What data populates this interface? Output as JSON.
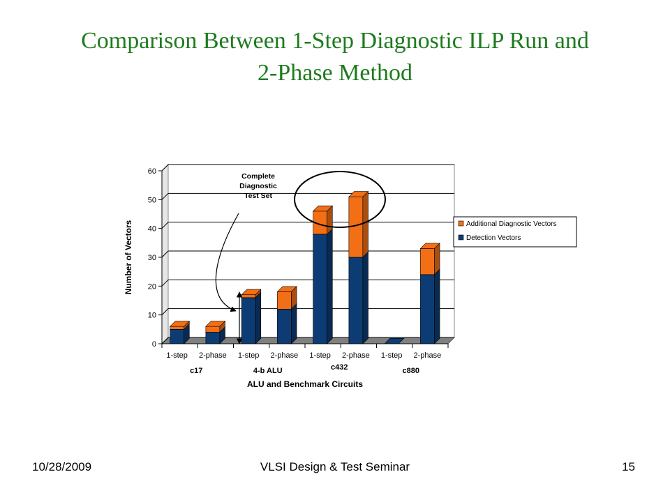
{
  "slide": {
    "title_line1": "Comparison Between 1-Step Diagnostic ILP Run and",
    "title_line2": "2-Phase Method",
    "footer_date": "10/28/2009",
    "footer_center": "VLSI Design & Test Seminar",
    "page_number": "15"
  },
  "chart_data": {
    "type": "bar",
    "stacked": true,
    "three_d": true,
    "title": "",
    "xlabel": "ALU and Benchmark Circuits",
    "ylabel": "Number of Vectors",
    "ylim": [
      0,
      60
    ],
    "yticks": [
      0,
      10,
      20,
      30,
      40,
      50,
      60
    ],
    "grid": true,
    "legend_position": "right",
    "categories": [
      "1-step",
      "2-phase",
      "1-step",
      "2-phase",
      "1-step",
      "2-phase",
      "1-step",
      "2-phase"
    ],
    "groups": [
      {
        "label": "c17",
        "categories": [
          0,
          1
        ]
      },
      {
        "label": "4-b ALU",
        "categories": [
          2,
          3
        ]
      },
      {
        "label": "c432",
        "categories": [
          4,
          5
        ]
      },
      {
        "label": "c880",
        "categories": [
          6,
          7
        ]
      }
    ],
    "series": [
      {
        "name": "Detection Vectors",
        "color": "#0d3c74",
        "values": [
          5,
          4,
          16,
          12,
          38,
          30,
          0,
          24
        ]
      },
      {
        "name": "Additional Diagnostic Vectors",
        "color": "#f36f16",
        "values": [
          1,
          2,
          1,
          6,
          8,
          21,
          0,
          9
        ]
      }
    ],
    "annotation": {
      "text_lines": [
        "Complete",
        "Diagnostic",
        "Test Set"
      ]
    }
  }
}
